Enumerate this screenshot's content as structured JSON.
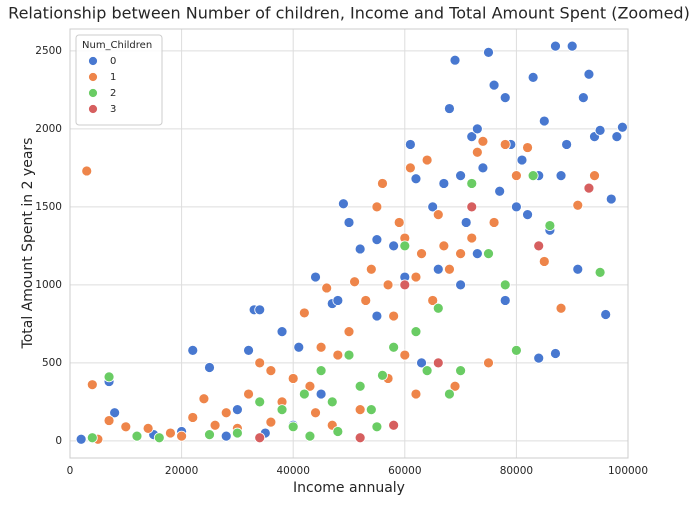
{
  "chart_data": {
    "type": "scatter",
    "title": "Relationship between Number of children, Income and Total Amount Spent (Zoomed)",
    "x_label": "Income annualy",
    "y_label": "Total Amount Spent in 2 years",
    "legend_title": "Num_Children",
    "legend": "upper left",
    "grid": true,
    "xlim": [
      0,
      100000
    ],
    "ylim": [
      -110,
      2640
    ],
    "xticks": [
      0,
      20000,
      40000,
      60000,
      80000,
      100000
    ],
    "yticks": [
      0,
      500,
      1000,
      1500,
      2000,
      2500
    ],
    "series": [
      {
        "name": "0",
        "color": "#4878d0",
        "x": [
          2000,
          7000,
          8000,
          15000,
          22000,
          25000,
          30000,
          32000,
          33000,
          34000,
          38000,
          41000,
          44000,
          47000,
          48000,
          49000,
          50000,
          52000,
          55000,
          58000,
          61000,
          62000,
          65000,
          67000,
          68000,
          69000,
          70000,
          71000,
          72000,
          73000,
          74000,
          75000,
          76000,
          77000,
          78000,
          79000,
          80000,
          81000,
          82000,
          83000,
          84000,
          85000,
          86000,
          87000,
          88000,
          89000,
          90000,
          91000,
          92000,
          93000,
          94000,
          95000,
          96000,
          97000,
          98000,
          99000,
          84000,
          87000,
          78000,
          73000,
          66000,
          60000,
          55000,
          45000,
          40000,
          35000,
          28000,
          20000,
          63000,
          70000
        ],
        "values": [
          10,
          380,
          180,
          40,
          580,
          470,
          200,
          580,
          840,
          840,
          700,
          600,
          1050,
          880,
          900,
          1520,
          1400,
          1230,
          1290,
          1250,
          1900,
          1680,
          1500,
          1650,
          2130,
          2440,
          1700,
          1400,
          1950,
          2000,
          1750,
          2490,
          2280,
          1600,
          2200,
          1900,
          1500,
          1800,
          1450,
          2330,
          1700,
          2050,
          1350,
          2530,
          1700,
          1900,
          2530,
          1100,
          2200,
          2350,
          1950,
          1990,
          810,
          1550,
          1950,
          2010,
          530,
          560,
          900,
          1200,
          1100,
          1050,
          800,
          300,
          100,
          50,
          30,
          60,
          500,
          1000
        ]
      },
      {
        "name": "1",
        "color": "#ee854a",
        "x": [
          3000,
          4000,
          5000,
          7000,
          10000,
          14000,
          18000,
          20000,
          22000,
          24000,
          26000,
          28000,
          30000,
          32000,
          34000,
          36000,
          38000,
          40000,
          42000,
          43000,
          45000,
          46000,
          48000,
          50000,
          51000,
          53000,
          54000,
          55000,
          56000,
          57000,
          58000,
          59000,
          60000,
          61000,
          62000,
          63000,
          64000,
          65000,
          66000,
          67000,
          68000,
          70000,
          72000,
          73000,
          74000,
          76000,
          78000,
          80000,
          82000,
          85000,
          88000,
          91000,
          94000,
          57000,
          60000,
          52000,
          47000,
          62000,
          69000,
          75000,
          44000,
          36000
        ],
        "values": [
          1730,
          360,
          10,
          130,
          90,
          80,
          50,
          30,
          150,
          270,
          100,
          180,
          80,
          300,
          500,
          450,
          250,
          400,
          820,
          350,
          600,
          980,
          550,
          700,
          1020,
          900,
          1100,
          1500,
          1650,
          1000,
          800,
          1400,
          1300,
          1750,
          1050,
          1200,
          1800,
          900,
          1450,
          1250,
          1100,
          1200,
          1300,
          1850,
          1920,
          1400,
          1900,
          1700,
          1880,
          1150,
          850,
          1510,
          1700,
          400,
          550,
          200,
          100,
          300,
          350,
          500,
          180,
          120
        ]
      },
      {
        "name": "2",
        "color": "#6acc64",
        "x": [
          4000,
          7000,
          12000,
          16000,
          25000,
          30000,
          34000,
          38000,
          40000,
          42000,
          45000,
          47000,
          50000,
          52000,
          54000,
          56000,
          58000,
          60000,
          62000,
          64000,
          66000,
          68000,
          70000,
          72000,
          75000,
          78000,
          80000,
          83000,
          86000,
          95000,
          43000,
          48000,
          55000
        ],
        "values": [
          20,
          410,
          30,
          20,
          40,
          50,
          250,
          200,
          90,
          300,
          450,
          250,
          550,
          350,
          200,
          420,
          600,
          1250,
          700,
          450,
          850,
          300,
          450,
          1650,
          1200,
          1000,
          580,
          1700,
          1380,
          1080,
          30,
          60,
          90
        ]
      },
      {
        "name": "3",
        "color": "#d65f5f",
        "x": [
          34000,
          52000,
          58000,
          60000,
          66000,
          72000,
          84000,
          93000
        ],
        "values": [
          20,
          20,
          100,
          1000,
          500,
          1500,
          1250,
          1620
        ]
      }
    ]
  }
}
